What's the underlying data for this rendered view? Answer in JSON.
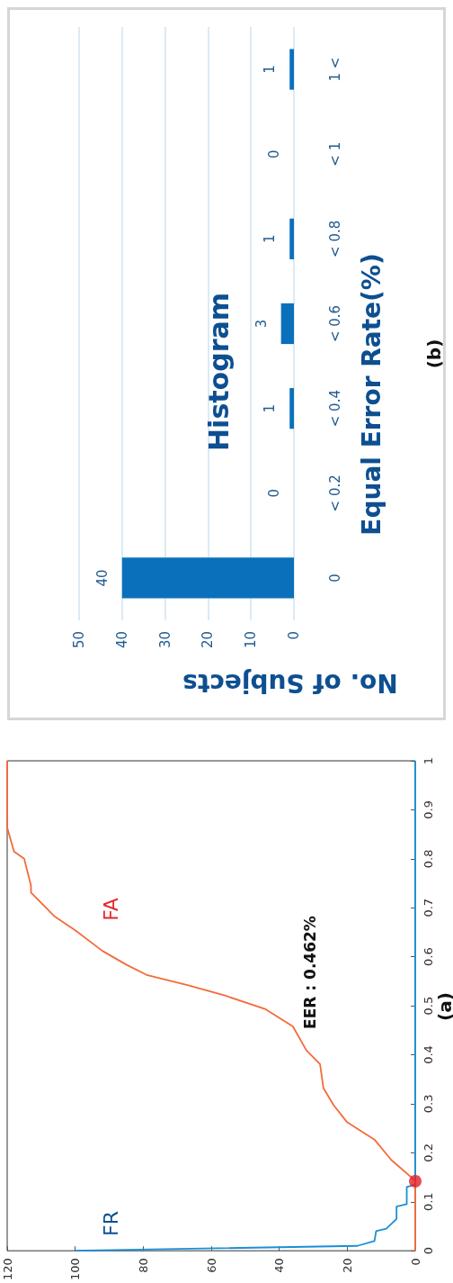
{
  "chart_data": [
    {
      "type": "line",
      "xlim": [
        120,
        0
      ],
      "xticks": [
        0,
        20,
        40,
        60,
        80,
        100,
        120
      ],
      "ylim": [
        0,
        1
      ],
      "yticks": [
        0,
        0.1,
        0.2,
        0.3,
        0.4,
        0.5,
        0.6,
        0.7,
        0.8,
        0.9,
        1
      ],
      "grid": false,
      "legend": false,
      "marker": "none",
      "series": [
        {
          "name": "FR",
          "color": "#1a8fd6",
          "x": [
            100,
            17,
            12,
            11.5,
            8.5,
            5.5,
            5.5,
            2.5,
            2.5,
            0,
            0
          ],
          "values": [
            0,
            0.01,
            0.02,
            0.04,
            0.045,
            0.065,
            0.09,
            0.095,
            0.13,
            0.135,
            1
          ]
        },
        {
          "name": "FA",
          "color": "#f26b3a",
          "x": [
            0,
            0,
            7,
            12,
            20,
            24,
            27,
            28,
            32,
            36,
            44,
            56,
            67,
            79,
            85,
            92,
            100,
            106,
            113,
            113,
            115,
            118,
            120,
            120
          ],
          "values": [
            0,
            0.143,
            0.185,
            0.227,
            0.262,
            0.297,
            0.332,
            0.381,
            0.409,
            0.458,
            0.493,
            0.521,
            0.542,
            0.563,
            0.584,
            0.612,
            0.654,
            0.682,
            0.731,
            0.745,
            0.8,
            0.815,
            0.864,
            1
          ]
        },
        {
          "type": "scatter",
          "color": "#e01f26",
          "marker": "circle",
          "x": [
            0
          ],
          "values": [
            0.142
          ]
        }
      ],
      "annotations": [
        "EER : 0.462%",
        "(a)"
      ]
    },
    {
      "type": "bar",
      "orientation": "horizontal",
      "title": "Histogram",
      "xlabel": "No. of Subjects",
      "ylabel": "Equal Error Rate(%)",
      "categories": [
        "1 <",
        "< 1",
        "< 0.8",
        "< 0.6",
        "< 0.4",
        "< 0.2",
        "0"
      ],
      "values": [
        1,
        0,
        1,
        3,
        1,
        0,
        40
      ],
      "color": "#0a70bb",
      "xlim": [
        50,
        0
      ],
      "xticks": [
        0,
        10,
        20,
        30,
        40,
        50
      ],
      "grid": "x",
      "legend": false,
      "data_labels": true,
      "annotations": [
        "(b)"
      ]
    }
  ]
}
